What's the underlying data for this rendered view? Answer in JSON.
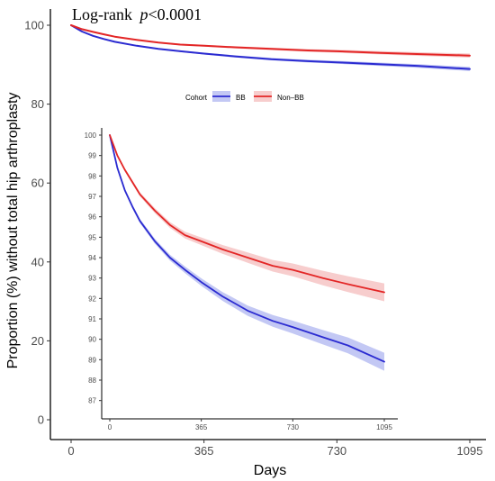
{
  "chart_data": [
    {
      "type": "line",
      "annotation": "Log-rank",
      "annotation_p": "p",
      "annotation_value": "<0.0001",
      "xlabel": "Days",
      "ylabel": "Proportion (%) without total hip arthroplasty",
      "xlim": [
        0,
        1095
      ],
      "ylim": [
        0,
        100
      ],
      "x_ticks": [
        0,
        365,
        730,
        1095
      ],
      "y_ticks": [
        0,
        20,
        40,
        60,
        80,
        100
      ],
      "x": [
        0,
        30,
        60,
        90,
        120,
        180,
        240,
        300,
        365,
        450,
        550,
        650,
        730,
        850,
        950,
        1095
      ],
      "legend_title": "Cohort",
      "legend_position": "top-center",
      "series": [
        {
          "name": "BB",
          "color": "#2b2bd1",
          "band_color": "#aab0f0",
          "values": [
            100,
            98.4,
            97.3,
            96.5,
            95.8,
            94.8,
            94.0,
            93.4,
            92.8,
            92.1,
            91.4,
            90.9,
            90.6,
            90.1,
            89.7,
            88.9
          ]
        },
        {
          "name": "Non–BB",
          "color": "#e32626",
          "band_color": "#f4b8b8",
          "values": [
            100,
            99.0,
            98.3,
            97.7,
            97.1,
            96.3,
            95.6,
            95.1,
            94.8,
            94.4,
            94.0,
            93.6,
            93.4,
            93.0,
            92.7,
            92.3
          ]
        }
      ]
    },
    {
      "type": "line",
      "role": "inset",
      "xlim": [
        0,
        1095
      ],
      "ylim": [
        86.5,
        100
      ],
      "x_ticks": [
        0,
        365,
        730,
        1095
      ],
      "y_ticks": [
        87,
        88,
        89,
        90,
        91,
        92,
        93,
        94,
        95,
        96,
        97,
        98,
        99,
        100
      ],
      "x": [
        0,
        30,
        60,
        90,
        120,
        180,
        240,
        300,
        365,
        450,
        550,
        650,
        730,
        850,
        950,
        1095
      ],
      "series": [
        {
          "name": "BB",
          "color": "#2b2bd1",
          "band_color": "#aab0f0",
          "values": [
            100,
            98.4,
            97.3,
            96.5,
            95.8,
            94.8,
            94.0,
            93.4,
            92.8,
            92.1,
            91.4,
            90.9,
            90.6,
            90.1,
            89.7,
            88.9
          ]
        },
        {
          "name": "Non–BB",
          "color": "#e32626",
          "band_color": "#f4b8b8",
          "values": [
            100,
            99.0,
            98.3,
            97.7,
            97.1,
            96.3,
            95.6,
            95.1,
            94.8,
            94.4,
            94.0,
            93.6,
            93.4,
            93.0,
            92.7,
            92.3
          ]
        }
      ]
    }
  ]
}
